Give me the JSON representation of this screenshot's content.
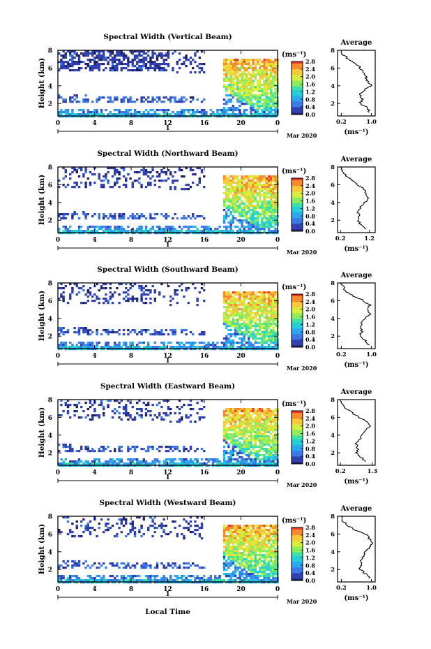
{
  "figure": {
    "xlabel_bottom": "Local Time",
    "date_label": "Mar 2020",
    "day_label": "1"
  },
  "chart_data": [
    {
      "type": "heatmap",
      "title": "Spectral Width (Vertical Beam)",
      "ylabel": "Height (km)",
      "xlim": [
        0,
        24
      ],
      "ylim": [
        0.6,
        8
      ],
      "xticks": [
        "0",
        "4",
        "8",
        "12",
        "16",
        "20",
        "0"
      ],
      "yticks": [
        "2",
        "4",
        "6",
        "8"
      ],
      "colorbar": {
        "unit": "(ms⁻¹)",
        "ticks": [
          "0.0",
          "0.4",
          "0.8",
          "1.2",
          "1.6",
          "2.0",
          "2.4",
          "2.8"
        ]
      },
      "average": {
        "title": "Average",
        "xlabel": "(ms⁻¹)",
        "xticks": [
          "0.2",
          "1.0"
        ],
        "xlim": [
          0.1,
          1.1
        ],
        "ylim": [
          0.6,
          8
        ],
        "yticks": [
          "2",
          "4",
          "6",
          "8"
        ],
        "profile": [
          [
            0.95,
            1
          ],
          [
            0.9,
            1.5
          ],
          [
            0.7,
            2
          ],
          [
            0.75,
            2.5
          ],
          [
            0.7,
            3
          ],
          [
            0.8,
            3.5
          ],
          [
            1.0,
            4
          ],
          [
            0.9,
            4.5
          ],
          [
            0.85,
            5
          ],
          [
            0.8,
            5.5
          ],
          [
            0.7,
            6
          ],
          [
            0.6,
            6.5
          ],
          [
            0.4,
            7
          ],
          [
            0.25,
            7.5
          ],
          [
            0.2,
            8
          ]
        ]
      }
    },
    {
      "type": "heatmap",
      "title": "Spectral Width (Northward Beam)",
      "ylabel": "Height (km)",
      "xlim": [
        0,
        24
      ],
      "ylim": [
        0.6,
        8
      ],
      "xticks": [
        "0",
        "4",
        "8",
        "12",
        "16",
        "20",
        "0"
      ],
      "yticks": [
        "2",
        "4",
        "6",
        "8"
      ],
      "colorbar": {
        "unit": "(ms⁻¹)",
        "ticks": [
          "0.0",
          "0.4",
          "0.8",
          "1.2",
          "1.6",
          "2.0",
          "2.4",
          "2.8"
        ]
      },
      "average": {
        "title": "Average",
        "xlabel": "(ms⁻¹)",
        "xticks": [
          "0.2",
          "1.2"
        ],
        "xlim": [
          0.1,
          1.4
        ],
        "ylim": [
          0.6,
          8
        ],
        "yticks": [
          "2",
          "4",
          "6",
          "8"
        ],
        "profile": [
          [
            1.05,
            1
          ],
          [
            0.9,
            1.5
          ],
          [
            0.8,
            2
          ],
          [
            0.85,
            2.5
          ],
          [
            0.8,
            3
          ],
          [
            0.9,
            3.5
          ],
          [
            1.05,
            4
          ],
          [
            1.15,
            4.5
          ],
          [
            1.1,
            5
          ],
          [
            1.0,
            5.5
          ],
          [
            0.8,
            6
          ],
          [
            0.6,
            6.5
          ],
          [
            0.4,
            7
          ],
          [
            0.25,
            7.5
          ],
          [
            0.2,
            8
          ]
        ]
      }
    },
    {
      "type": "heatmap",
      "title": "Spectral Width (Southward Beam)",
      "ylabel": "Height (km)",
      "xlim": [
        0,
        24
      ],
      "ylim": [
        0.6,
        8
      ],
      "xticks": [
        "0",
        "4",
        "8",
        "12",
        "16",
        "20",
        "0"
      ],
      "yticks": [
        "2",
        "4",
        "6",
        "8"
      ],
      "colorbar": {
        "unit": "(ms⁻¹)",
        "ticks": [
          "0.0",
          "0.4",
          "0.8",
          "1.2",
          "1.6",
          "2.0",
          "2.4",
          "2.8"
        ]
      },
      "average": {
        "title": "Average",
        "xlabel": "(ms⁻¹)",
        "xticks": [
          "0.2",
          "1.0"
        ],
        "xlim": [
          0.1,
          1.1
        ],
        "ylim": [
          0.6,
          8
        ],
        "yticks": [
          "2",
          "4",
          "6",
          "8"
        ],
        "profile": [
          [
            0.95,
            1
          ],
          [
            0.85,
            1.5
          ],
          [
            0.7,
            2
          ],
          [
            0.75,
            2.5
          ],
          [
            0.7,
            3
          ],
          [
            0.75,
            3.5
          ],
          [
            0.85,
            4
          ],
          [
            0.95,
            4.5
          ],
          [
            0.9,
            5
          ],
          [
            0.95,
            5.5
          ],
          [
            0.8,
            6
          ],
          [
            0.55,
            6.5
          ],
          [
            0.35,
            7
          ],
          [
            0.25,
            7.5
          ],
          [
            0.2,
            8
          ]
        ]
      }
    },
    {
      "type": "heatmap",
      "title": "Spectral Width (Eastward Beam)",
      "ylabel": "Height (km)",
      "xlim": [
        0,
        24
      ],
      "ylim": [
        0.6,
        8
      ],
      "xticks": [
        "0",
        "4",
        "8",
        "12",
        "16",
        "20",
        "0"
      ],
      "yticks": [
        "2",
        "4",
        "6",
        "8"
      ],
      "colorbar": {
        "unit": "(ms⁻¹)",
        "ticks": [
          "0.0",
          "0.4",
          "0.8",
          "1.2",
          "1.6",
          "2.0",
          "2.4",
          "2.8"
        ]
      },
      "average": {
        "title": "Average",
        "xlabel": "(ms⁻¹)",
        "xticks": [
          "0.2",
          "1.3"
        ],
        "xlim": [
          0.1,
          1.4
        ],
        "ylim": [
          0.6,
          8
        ],
        "yticks": [
          "2",
          "4",
          "6",
          "8"
        ],
        "profile": [
          [
            1.1,
            1
          ],
          [
            0.9,
            1.5
          ],
          [
            0.75,
            2
          ],
          [
            0.8,
            2.5
          ],
          [
            0.75,
            3
          ],
          [
            0.85,
            3.5
          ],
          [
            0.95,
            4
          ],
          [
            1.05,
            4.5
          ],
          [
            1.2,
            5
          ],
          [
            1.1,
            5.5
          ],
          [
            0.85,
            6
          ],
          [
            0.6,
            6.5
          ],
          [
            0.4,
            7
          ],
          [
            0.25,
            7.5
          ],
          [
            0.2,
            8
          ]
        ]
      }
    },
    {
      "type": "heatmap",
      "title": "Spectral Width (Westward Beam)",
      "ylabel": "Height (km)",
      "xlim": [
        0,
        24
      ],
      "ylim": [
        0.6,
        8
      ],
      "xticks": [
        "0",
        "4",
        "8",
        "12",
        "16",
        "20",
        "0"
      ],
      "yticks": [
        "2",
        "4",
        "6",
        "8"
      ],
      "colorbar": {
        "unit": "(ms⁻¹)",
        "ticks": [
          "0.0",
          "0.4",
          "0.8",
          "1.2",
          "1.6",
          "2.0",
          "2.4",
          "2.8"
        ]
      },
      "average": {
        "title": "Average",
        "xlabel": "(ms⁻¹)",
        "xticks": [
          "0.2",
          "1.0"
        ],
        "xlim": [
          0.1,
          1.1
        ],
        "ylim": [
          0.6,
          8
        ],
        "yticks": [
          "2",
          "4",
          "6",
          "8"
        ],
        "profile": [
          [
            0.95,
            1
          ],
          [
            0.85,
            1.5
          ],
          [
            0.7,
            2
          ],
          [
            0.75,
            2.5
          ],
          [
            0.7,
            3
          ],
          [
            0.8,
            3.5
          ],
          [
            0.85,
            4
          ],
          [
            0.95,
            4.5
          ],
          [
            1.0,
            5
          ],
          [
            0.95,
            5.5
          ],
          [
            0.85,
            6
          ],
          [
            0.55,
            6.5
          ],
          [
            0.35,
            7
          ],
          [
            0.25,
            7.5
          ],
          [
            0.2,
            8
          ]
        ]
      }
    }
  ]
}
